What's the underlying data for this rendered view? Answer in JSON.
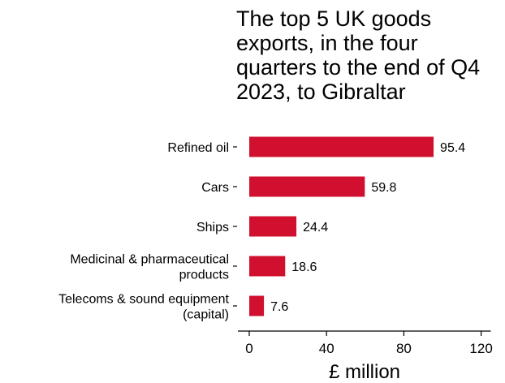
{
  "chart_data": {
    "type": "bar",
    "orientation": "horizontal",
    "title": "The top 5 UK goods exports, in the four quarters to the end of Q4 2023, to Gibraltar",
    "xlabel": "£ million",
    "ylabel": "",
    "categories": [
      [
        "Refined oil"
      ],
      [
        "Cars"
      ],
      [
        "Ships"
      ],
      [
        "Medicinal & pharmaceutical",
        "products"
      ],
      [
        "Telecoms & sound equipment",
        "(capital)"
      ]
    ],
    "values": [
      95.4,
      59.8,
      24.4,
      18.6,
      7.6
    ],
    "value_labels": [
      "95.4",
      "59.8",
      "24.4",
      "18.6",
      "7.6"
    ],
    "xlim": [
      0,
      125
    ],
    "xticks": [
      0,
      40,
      80,
      120
    ],
    "bar_color": "#d0102e",
    "grid": false
  }
}
